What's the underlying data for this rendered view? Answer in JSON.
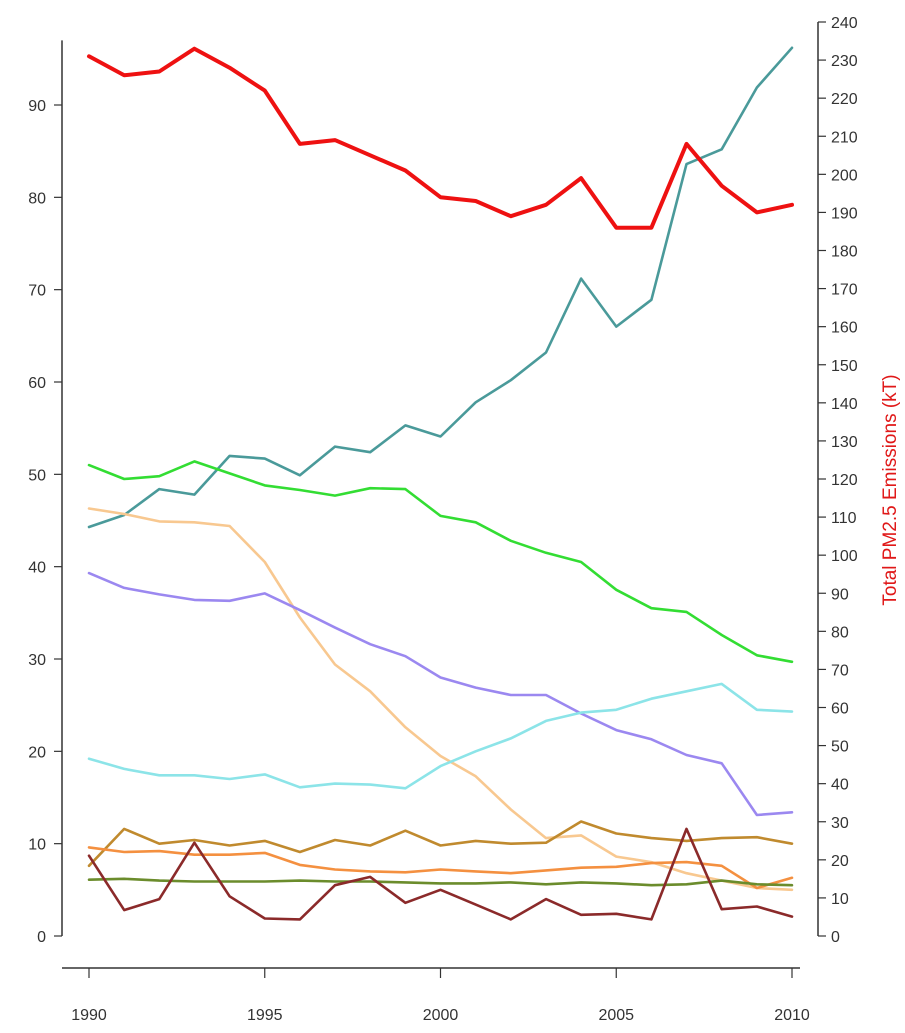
{
  "chart_data": {
    "type": "line",
    "title": "",
    "x": [
      1990,
      1991,
      1992,
      1993,
      1994,
      1995,
      1996,
      1997,
      1998,
      1999,
      2000,
      2001,
      2002,
      2003,
      2004,
      2005,
      2006,
      2007,
      2008,
      2009,
      2010
    ],
    "xticks": [
      1990,
      1995,
      2000,
      2005,
      2010
    ],
    "xlim": [
      1990,
      2010
    ],
    "ylabel_left": "",
    "ylim_left": [
      0,
      97
    ],
    "yticks_left": [
      0,
      10,
      20,
      30,
      40,
      50,
      60,
      70,
      80,
      90
    ],
    "ylabel_right": "Total PM2.5 Emissions (kT)",
    "ylim_right": [
      0,
      240
    ],
    "yticks_right": [
      0,
      10,
      20,
      30,
      40,
      50,
      60,
      70,
      80,
      90,
      100,
      110,
      120,
      130,
      140,
      150,
      160,
      170,
      180,
      190,
      200,
      210,
      220,
      230,
      240
    ],
    "grid": false,
    "legend": "none",
    "series": [
      {
        "axis": "right",
        "color": "#ee1111",
        "width": 4,
        "values": [
          231,
          226,
          227,
          233,
          228,
          222,
          208,
          209,
          205,
          201,
          194,
          193,
          189,
          192,
          199,
          186,
          186,
          208,
          197,
          190,
          192
        ]
      },
      {
        "axis": "left",
        "color": "#4a9a9a",
        "width": 2.6,
        "values": [
          44.3,
          45.6,
          48.4,
          47.8,
          52.0,
          51.7,
          49.9,
          53.0,
          52.4,
          55.3,
          54.1,
          57.8,
          60.2,
          63.2,
          71.2,
          66.0,
          68.9,
          83.6,
          85.2,
          91.9,
          96.2
        ]
      },
      {
        "axis": "left",
        "color": "#33dd33",
        "width": 2.6,
        "values": [
          51.0,
          49.5,
          49.8,
          51.4,
          50.1,
          48.8,
          48.3,
          47.7,
          48.5,
          48.4,
          45.5,
          44.8,
          42.8,
          41.5,
          40.5,
          37.5,
          35.5,
          35.1,
          32.6,
          30.4,
          29.7
        ]
      },
      {
        "axis": "left",
        "color": "#f8c890",
        "width": 2.6,
        "values": [
          46.3,
          45.7,
          44.9,
          44.8,
          44.4,
          40.5,
          34.5,
          29.4,
          26.5,
          22.6,
          19.5,
          17.3,
          13.7,
          10.6,
          10.9,
          8.6,
          8.0,
          6.8,
          6.0,
          5.2,
          5.0
        ]
      },
      {
        "axis": "left",
        "color": "#9b88f0",
        "width": 2.6,
        "values": [
          39.3,
          37.7,
          37.0,
          36.4,
          36.3,
          37.1,
          35.3,
          33.4,
          31.6,
          30.3,
          28.0,
          26.9,
          26.1,
          26.1,
          24.1,
          22.3,
          21.3,
          19.6,
          18.7,
          13.1,
          13.4
        ]
      },
      {
        "axis": "left",
        "color": "#8ce4e8",
        "width": 2.6,
        "values": [
          19.2,
          18.1,
          17.4,
          17.4,
          17.0,
          17.5,
          16.1,
          16.5,
          16.4,
          16.0,
          18.4,
          20.0,
          21.4,
          23.3,
          24.2,
          24.5,
          25.7,
          26.5,
          27.3,
          24.5,
          24.3
        ]
      },
      {
        "axis": "left",
        "color": "#c08a2e",
        "width": 2.6,
        "values": [
          7.6,
          11.6,
          10.0,
          10.4,
          9.8,
          10.3,
          9.1,
          10.4,
          9.8,
          11.4,
          9.8,
          10.3,
          10.0,
          10.1,
          12.4,
          11.1,
          10.6,
          10.3,
          10.6,
          10.7,
          10.0
        ]
      },
      {
        "axis": "left",
        "color": "#f49040",
        "width": 2.6,
        "values": [
          9.6,
          9.1,
          9.2,
          8.8,
          8.8,
          9.0,
          7.7,
          7.2,
          7.0,
          6.9,
          7.2,
          7.0,
          6.8,
          7.1,
          7.4,
          7.5,
          7.9,
          8.0,
          7.6,
          5.2,
          6.3
        ]
      },
      {
        "axis": "left",
        "color": "#6b8c2c",
        "width": 2.6,
        "values": [
          6.1,
          6.2,
          6.0,
          5.9,
          5.9,
          5.9,
          6.0,
          5.9,
          5.9,
          5.8,
          5.7,
          5.7,
          5.8,
          5.6,
          5.8,
          5.7,
          5.5,
          5.6,
          6.0,
          5.6,
          5.5
        ]
      },
      {
        "axis": "left",
        "color": "#8b2a2a",
        "width": 2.6,
        "values": [
          8.7,
          2.8,
          4.0,
          10.1,
          4.3,
          1.9,
          1.8,
          5.5,
          6.4,
          3.6,
          5.0,
          3.4,
          1.8,
          4.0,
          2.3,
          2.4,
          1.8,
          11.6,
          2.9,
          3.2,
          2.1
        ]
      }
    ]
  }
}
